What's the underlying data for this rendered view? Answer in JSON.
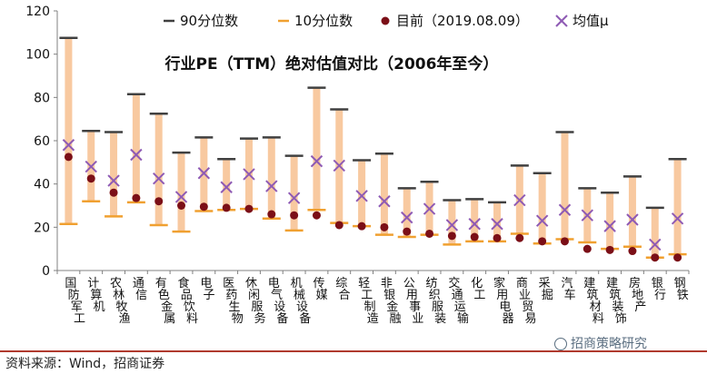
{
  "chart_data": {
    "type": "range",
    "title": "行业PE（TTM）绝对估值对比（2006年至今）",
    "ylim": [
      0,
      120
    ],
    "yticks": [
      0,
      20,
      40,
      60,
      80,
      100,
      120
    ],
    "legend_position": "top",
    "categories": [
      "国防军工",
      "计算机",
      "农林牧渔",
      "通信",
      "有色金属",
      "食品饮料",
      "电子",
      "医药生物",
      "休闲服务",
      "电气设备",
      "机械设备",
      "传媒",
      "综合",
      "轻工制造",
      "非银金融",
      "公用事业",
      "纺织服装",
      "交通运输",
      "化工",
      "家用电器",
      "商业贸易",
      "采掘",
      "汽车",
      "建筑材料",
      "建筑装饰",
      "房地产",
      "银行",
      "钢铁"
    ],
    "series": [
      {
        "name": "90分位数",
        "color": "#404040",
        "values": [
          107.5,
          64.5,
          64,
          81.5,
          72.5,
          54.5,
          61.5,
          51.5,
          61,
          61.5,
          53,
          84.5,
          74.5,
          51,
          54,
          38,
          41,
          32.5,
          33,
          31.5,
          48.5,
          45,
          64,
          38,
          36,
          43.5,
          29,
          51.5
        ]
      },
      {
        "name": "10分位数",
        "color": "#f0a030",
        "values": [
          21.5,
          32,
          25,
          31.5,
          21,
          18,
          27.5,
          28,
          28.5,
          24,
          18.5,
          28,
          22,
          20.5,
          16.5,
          15.5,
          16.5,
          12,
          13.5,
          13.5,
          17,
          12.5,
          14.5,
          13,
          10,
          11,
          6,
          7.5
        ]
      },
      {
        "name": "目前（2019.08.09）",
        "color": "#7b0f17",
        "values": [
          52.5,
          42.5,
          36,
          33.5,
          32,
          30,
          29.5,
          29,
          28.5,
          26,
          25.5,
          25.5,
          21,
          20.5,
          20,
          18,
          17,
          16,
          15.5,
          15,
          15,
          13.5,
          13.5,
          10,
          9.5,
          9,
          6,
          6
        ]
      },
      {
        "name": "均值μ",
        "color": "#8e5ab4",
        "values": [
          58,
          48,
          41.5,
          53.5,
          42.5,
          34,
          45,
          38.5,
          44.5,
          39,
          33.5,
          50.5,
          48.5,
          34.5,
          32,
          24.5,
          28.5,
          21,
          21.5,
          21.5,
          32.5,
          23,
          28,
          25.5,
          20.5,
          23.5,
          12,
          24
        ]
      }
    ]
  },
  "source_text": "资料来源：Wind，招商证券",
  "watermark_text": "招商策略研究",
  "colors": {
    "range_fill": "#f8c9a0",
    "axis": "#808080",
    "bottom_rule": "#b03a2e"
  }
}
